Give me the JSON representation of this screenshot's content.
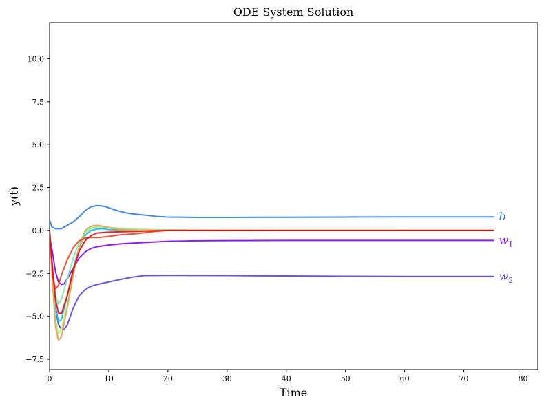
{
  "chart_data": {
    "type": "line",
    "title": "ODE System Solution",
    "xlabel": "Time",
    "ylabel": "y(t)",
    "xlim": [
      0,
      82.5
    ],
    "ylim": [
      -8.1,
      12.1
    ],
    "xticks": [
      0,
      10,
      20,
      30,
      40,
      50,
      60,
      70,
      80
    ],
    "yticks": [
      -7.5,
      -5.0,
      -2.5,
      0.0,
      2.5,
      5.0,
      7.5,
      10.0
    ],
    "ytick_labels": [
      "−7.5",
      "−5.0",
      "−2.5",
      "0.0",
      "2.5",
      "5.0",
      "7.5",
      "10.0"
    ],
    "grid": false,
    "legend": "none",
    "series": [
      {
        "name": "b",
        "label_text": "b",
        "label_sub": "",
        "color": "#2c7be8",
        "points": [
          [
            0,
            0.6
          ],
          [
            0.4,
            0.2
          ],
          [
            1,
            0.1
          ],
          [
            2,
            0.1
          ],
          [
            3,
            0.3
          ],
          [
            4,
            0.5
          ],
          [
            5,
            0.8
          ],
          [
            6,
            1.15
          ],
          [
            7,
            1.38
          ],
          [
            8,
            1.45
          ],
          [
            9,
            1.42
          ],
          [
            10,
            1.32
          ],
          [
            11,
            1.2
          ],
          [
            12,
            1.1
          ],
          [
            13,
            1.02
          ],
          [
            14,
            0.97
          ],
          [
            15,
            0.93
          ],
          [
            16,
            0.9
          ],
          [
            18,
            0.82
          ],
          [
            20,
            0.78
          ],
          [
            25,
            0.76
          ],
          [
            30,
            0.76
          ],
          [
            40,
            0.77
          ],
          [
            50,
            0.78
          ],
          [
            60,
            0.79
          ],
          [
            70,
            0.79
          ],
          [
            75,
            0.79
          ]
        ]
      },
      {
        "name": "w_1",
        "label_text": "w",
        "label_sub": "1",
        "color": "#7f00ff",
        "points": [
          [
            0,
            -0.3
          ],
          [
            0.5,
            -1.3
          ],
          [
            1,
            -2.4
          ],
          [
            1.5,
            -3.0
          ],
          [
            2,
            -3.15
          ],
          [
            2.5,
            -3.1
          ],
          [
            3,
            -2.8
          ],
          [
            4,
            -2.2
          ],
          [
            5,
            -1.6
          ],
          [
            6,
            -1.25
          ],
          [
            7,
            -1.05
          ],
          [
            8,
            -0.95
          ],
          [
            10,
            -0.85
          ],
          [
            12,
            -0.78
          ],
          [
            15,
            -0.72
          ],
          [
            20,
            -0.63
          ],
          [
            25,
            -0.6
          ],
          [
            30,
            -0.59
          ],
          [
            40,
            -0.58
          ],
          [
            50,
            -0.58
          ],
          [
            60,
            -0.58
          ],
          [
            70,
            -0.58
          ],
          [
            75,
            -0.58
          ]
        ]
      },
      {
        "name": "w_2",
        "label_text": "w",
        "label_sub": "2",
        "color": "#5a3fe8",
        "points": [
          [
            0,
            -0.5
          ],
          [
            0.5,
            -2.5
          ],
          [
            1,
            -4.5
          ],
          [
            1.5,
            -5.5
          ],
          [
            2,
            -5.75
          ],
          [
            2.5,
            -5.75
          ],
          [
            3,
            -5.5
          ],
          [
            4,
            -4.5
          ],
          [
            5,
            -3.8
          ],
          [
            6,
            -3.45
          ],
          [
            7,
            -3.25
          ],
          [
            8,
            -3.15
          ],
          [
            10,
            -3.0
          ],
          [
            12,
            -2.85
          ],
          [
            14,
            -2.72
          ],
          [
            16,
            -2.63
          ],
          [
            20,
            -2.62
          ],
          [
            30,
            -2.63
          ],
          [
            40,
            -2.65
          ],
          [
            50,
            -2.67
          ],
          [
            60,
            -2.68
          ],
          [
            70,
            -2.68
          ],
          [
            75,
            -2.68
          ]
        ]
      },
      {
        "name": "",
        "label_text": "",
        "label_sub": "",
        "color": "#00c8f0",
        "points": [
          [
            0,
            0
          ],
          [
            0.5,
            -2.5
          ],
          [
            1,
            -4.4
          ],
          [
            1.5,
            -5.3
          ],
          [
            2,
            -5.2
          ],
          [
            3,
            -3.8
          ],
          [
            4,
            -2.2
          ],
          [
            5,
            -1.0
          ],
          [
            6,
            -0.3
          ],
          [
            7,
            0.0
          ],
          [
            8,
            0.08
          ],
          [
            9,
            0.1
          ],
          [
            10,
            0.05
          ],
          [
            12,
            0.02
          ],
          [
            15,
            0.0
          ],
          [
            20,
            0.0
          ],
          [
            75,
            0.0
          ]
        ]
      },
      {
        "name": "",
        "label_text": "",
        "label_sub": "",
        "color": "#7fe8a8",
        "points": [
          [
            0,
            0
          ],
          [
            0.5,
            -2.2
          ],
          [
            1,
            -3.8
          ],
          [
            1.5,
            -4.3
          ],
          [
            2,
            -4.0
          ],
          [
            3,
            -2.8
          ],
          [
            4,
            -1.6
          ],
          [
            5,
            -0.7
          ],
          [
            6,
            -0.15
          ],
          [
            7,
            0.12
          ],
          [
            8,
            0.22
          ],
          [
            10,
            0.18
          ],
          [
            12,
            0.12
          ],
          [
            15,
            0.07
          ],
          [
            20,
            0.03
          ],
          [
            30,
            0.01
          ],
          [
            75,
            0.0
          ]
        ]
      },
      {
        "name": "",
        "label_text": "",
        "label_sub": "",
        "color": "#b0f080",
        "points": [
          [
            0,
            0
          ],
          [
            0.5,
            -2.8
          ],
          [
            1,
            -5.2
          ],
          [
            1.5,
            -6.0
          ],
          [
            2,
            -5.8
          ],
          [
            3,
            -4.3
          ],
          [
            4,
            -2.5
          ],
          [
            5,
            -1.0
          ],
          [
            6,
            -0.1
          ],
          [
            7,
            0.2
          ],
          [
            8,
            0.25
          ],
          [
            10,
            0.15
          ],
          [
            12,
            0.08
          ],
          [
            15,
            0.05
          ],
          [
            20,
            0.02
          ],
          [
            75,
            0.0
          ]
        ]
      },
      {
        "name": "",
        "label_text": "",
        "label_sub": "",
        "color": "#e8a050",
        "points": [
          [
            0,
            0
          ],
          [
            0.5,
            -3.0
          ],
          [
            1,
            -5.6
          ],
          [
            1.5,
            -6.4
          ],
          [
            2,
            -6.2
          ],
          [
            3,
            -4.5
          ],
          [
            4,
            -2.6
          ],
          [
            5,
            -1.0
          ],
          [
            6,
            0.0
          ],
          [
            7,
            0.25
          ],
          [
            8,
            0.3
          ],
          [
            9,
            0.25
          ],
          [
            10,
            0.15
          ],
          [
            12,
            0.05
          ],
          [
            15,
            0.0
          ],
          [
            20,
            0.0
          ],
          [
            75,
            0.0
          ]
        ]
      },
      {
        "name": "",
        "label_text": "",
        "label_sub": "",
        "color": "#f04020",
        "points": [
          [
            0,
            0
          ],
          [
            0.3,
            -1.5
          ],
          [
            0.6,
            -2.8
          ],
          [
            1,
            -3.4
          ],
          [
            1.5,
            -3.2
          ],
          [
            2,
            -2.6
          ],
          [
            3,
            -1.7
          ],
          [
            4,
            -1.0
          ],
          [
            5,
            -0.6
          ],
          [
            6,
            -0.45
          ],
          [
            7,
            -0.4
          ],
          [
            8,
            -0.42
          ],
          [
            10,
            -0.35
          ],
          [
            12,
            -0.25
          ],
          [
            15,
            -0.18
          ],
          [
            18,
            -0.05
          ],
          [
            20,
            0.0
          ],
          [
            25,
            0.0
          ],
          [
            75,
            0.0
          ]
        ]
      },
      {
        "name": "",
        "label_text": "",
        "label_sub": "",
        "color": "#ff0000",
        "points": [
          [
            0,
            0
          ],
          [
            0.5,
            -2.2
          ],
          [
            1,
            -4.0
          ],
          [
            1.5,
            -4.8
          ],
          [
            2,
            -4.85
          ],
          [
            3,
            -3.8
          ],
          [
            4,
            -2.3
          ],
          [
            5,
            -1.2
          ],
          [
            6,
            -0.6
          ],
          [
            7,
            -0.3
          ],
          [
            8,
            -0.15
          ],
          [
            10,
            -0.1
          ],
          [
            12,
            -0.08
          ],
          [
            15,
            -0.05
          ],
          [
            18,
            -0.02
          ],
          [
            20,
            0.0
          ],
          [
            75,
            0.0
          ]
        ]
      }
    ]
  }
}
